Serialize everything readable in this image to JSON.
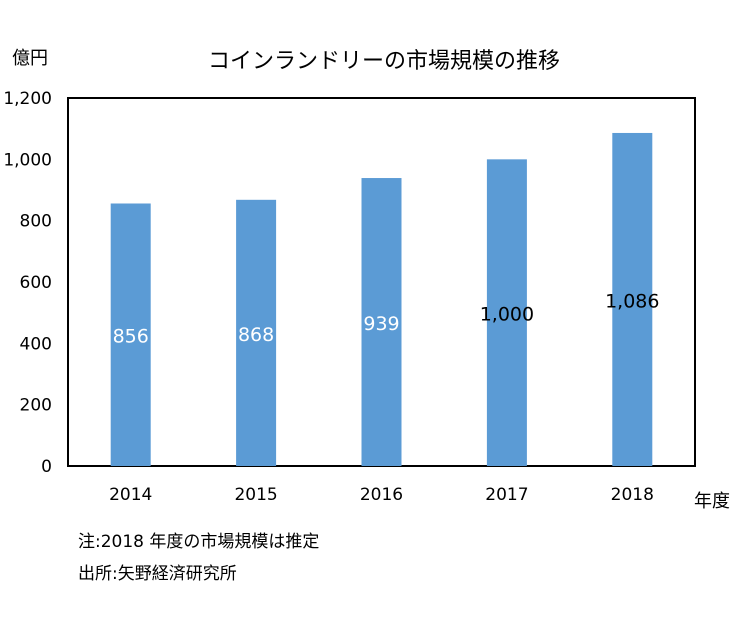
{
  "chart_data": {
    "type": "bar",
    "title": "コインランドリーの市場規模の推移",
    "ylabel": "億円",
    "xlabel": "年度",
    "categories": [
      "2014",
      "2015",
      "2016",
      "2017",
      "2018"
    ],
    "values": [
      856,
      868,
      939,
      1000,
      1086
    ],
    "value_labels": [
      "856",
      "868",
      "939",
      "1,000",
      "1,086"
    ],
    "ylim": [
      0,
      1200
    ],
    "yticks": [
      0,
      200,
      400,
      600,
      800,
      1000,
      1200
    ],
    "ytick_labels": [
      "0",
      "200",
      "400",
      "600",
      "800",
      "1,000",
      "1,200"
    ],
    "bar_color": "#5b9bd5",
    "grid": false,
    "legend": "none"
  },
  "notes": {
    "note": "注:2018 年度の市場規模は推定",
    "source": "出所:矢野経済研究所"
  }
}
